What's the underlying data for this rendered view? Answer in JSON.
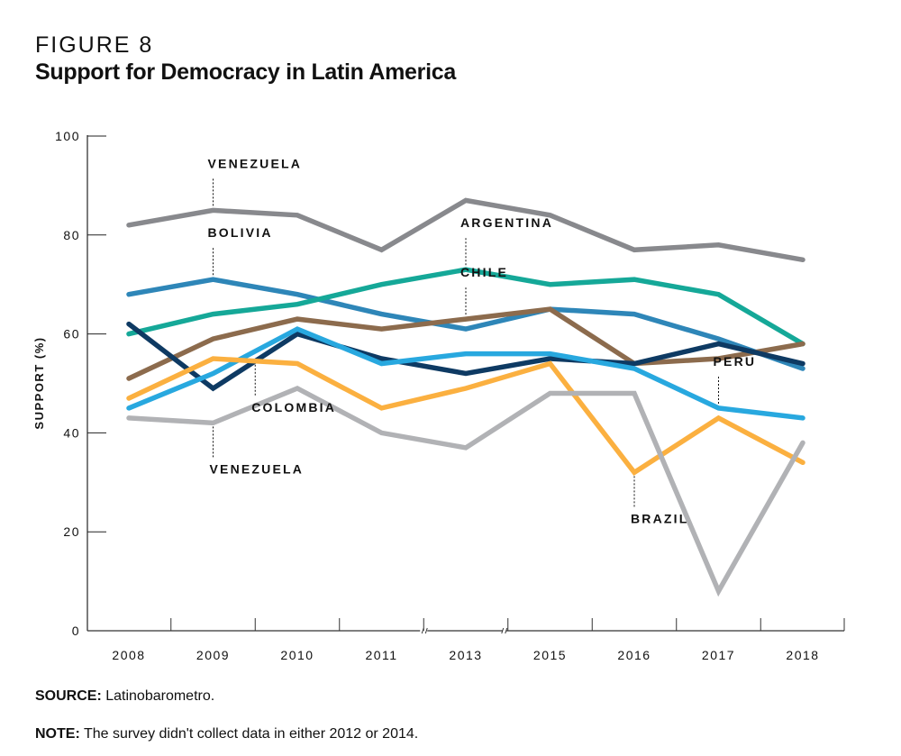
{
  "figure": {
    "label": "FIGURE 8",
    "title": "Support for Democracy in Latin America",
    "source_label": "SOURCE:",
    "source_text": " Latinobarometro.",
    "note_label": "NOTE:",
    "note_text": " The survey didn't collect data in either 2012 or 2014."
  },
  "chart_data": {
    "type": "line",
    "title": "Support for Democracy in Latin America",
    "xlabel": "",
    "ylabel": "SUPPORT (%)",
    "ylim": [
      0,
      100
    ],
    "yticks": [
      0,
      20,
      40,
      60,
      80,
      100
    ],
    "grid": false,
    "x": [
      "2008",
      "2009",
      "2010",
      "2011",
      "2013",
      "2015",
      "2016",
      "2017",
      "2018"
    ],
    "axis_breaks": [
      "between 2011 and 2013",
      "between 2013 and 2015"
    ],
    "series": [
      {
        "name": "Venezuela",
        "label": "VENEZUELA",
        "color": "#88898d",
        "label_at": "2009",
        "label_pos": "above",
        "values": [
          82,
          85,
          84,
          77,
          87,
          84,
          77,
          78,
          75
        ]
      },
      {
        "name": "Bolivia",
        "label": "BOLIVIA",
        "color": "#2e86b8",
        "label_at": "2009",
        "label_pos": "above",
        "values": [
          68,
          71,
          68,
          64,
          61,
          65,
          64,
          59,
          53
        ]
      },
      {
        "name": "Argentina",
        "label": "ARGENTINA",
        "color": "#15a898",
        "label_at": "2013",
        "label_pos": "above",
        "values": [
          60,
          64,
          66,
          70,
          73,
          70,
          71,
          68,
          58
        ]
      },
      {
        "name": "Chile",
        "label": "CHILE",
        "color": "#8c6b4d",
        "label_at": "2013",
        "label_pos": "above",
        "values": [
          51,
          59,
          63,
          61,
          63,
          65,
          54,
          55,
          58
        ]
      },
      {
        "name": "Colombia",
        "label": "COLOMBIA",
        "color": "#0e3a63",
        "label_at": "2009.5",
        "label_pos": "below",
        "values": [
          62,
          49,
          60,
          55,
          52,
          55,
          54,
          58,
          54
        ]
      },
      {
        "name": "Peru",
        "label": "PERU",
        "color": "#28a8df",
        "label_at": "2017",
        "label_pos": "above",
        "values": [
          45,
          52,
          61,
          54,
          56,
          56,
          53,
          45,
          43
        ]
      },
      {
        "name": "Brazil",
        "label": "BRAZIL",
        "color": "#fbb040",
        "label_at": "2016",
        "label_pos": "below",
        "values": [
          47,
          55,
          54,
          45,
          49,
          54,
          32,
          43,
          34
        ]
      },
      {
        "name": "Venezuela (2)",
        "label": "VENEZUELA",
        "color": "#b1b2b5",
        "label_at": "2009",
        "label_pos": "below",
        "values": [
          43,
          42,
          49,
          40,
          37,
          48,
          48,
          8,
          38
        ]
      }
    ]
  }
}
